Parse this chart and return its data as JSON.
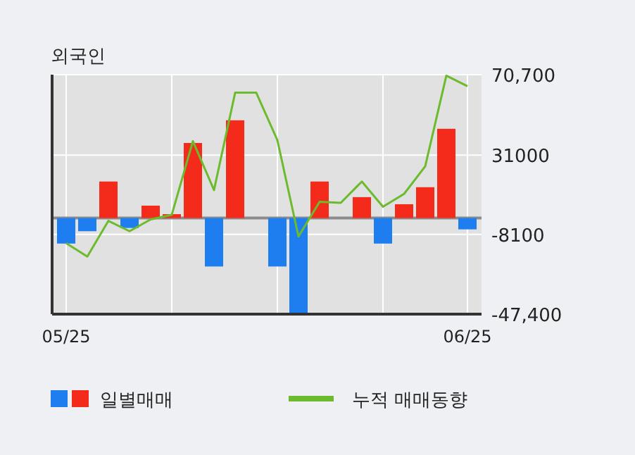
{
  "chart_data": {
    "type": "bar",
    "title": "외국인",
    "categories": [
      "05/25",
      null,
      null,
      null,
      null,
      null,
      null,
      null,
      null,
      null,
      null,
      null,
      null,
      null,
      null,
      null,
      null,
      null,
      null,
      "06/25"
    ],
    "series": [
      {
        "name": "일별매매",
        "colors": [
          "#1e7ef0",
          "#1e7ef0",
          "#f42a1a",
          "#1e7ef0",
          "#f42a1a",
          "#f42a1a",
          "#f42a1a",
          "#1e7ef0",
          "#f42a1a",
          "#f42a1a",
          "#1e7ef0",
          "#1e7ef0",
          "#f42a1a",
          "#f42a1a",
          "#f42a1a",
          "#1e7ef0",
          "#f42a1a",
          "#f42a1a",
          "#f42a1a",
          "#1e7ef0"
        ],
        "values": [
          -12600,
          -6500,
          18000,
          -4900,
          6100,
          1900,
          37000,
          -23900,
          48200,
          0,
          -23900,
          -47000,
          18000,
          0,
          10300,
          -12600,
          6800,
          15200,
          44000,
          -5600
        ]
      },
      {
        "name": "누적 매매동향",
        "type": "line",
        "color": "#6cbb2c",
        "values": [
          -12400,
          -19000,
          -1400,
          -6500,
          -700,
          1600,
          37900,
          13800,
          61800,
          61800,
          38400,
          -9100,
          8000,
          7500,
          18000,
          5600,
          11900,
          25500,
          70200,
          65000
        ]
      }
    ],
    "ylim": [
      -47400,
      70700
    ],
    "yticks": [
      {
        "value": 70700,
        "label": "70,700"
      },
      31000,
      -8100,
      {
        "value": -47400,
        "label": "-47,400"
      }
    ],
    "grid": true,
    "legend": "bottom"
  }
}
